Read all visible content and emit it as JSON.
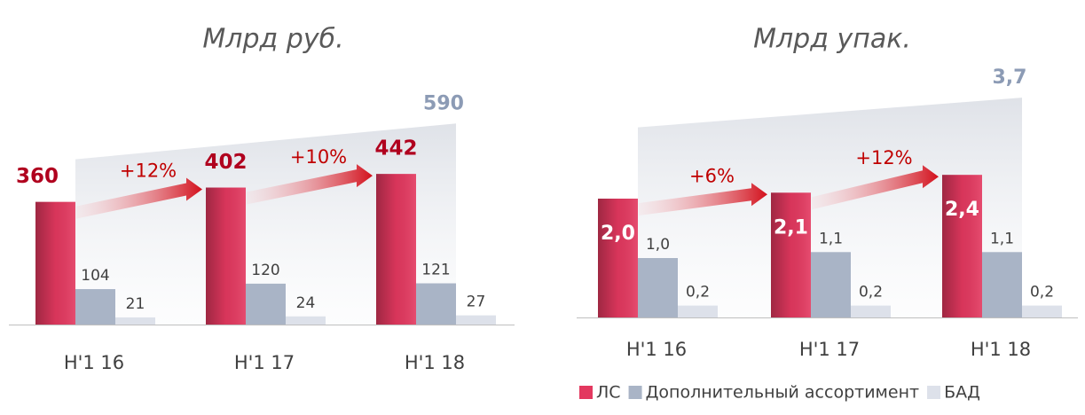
{
  "chart_data": [
    {
      "type": "bar",
      "title": "Млрд руб.",
      "categories": [
        "H'1 16",
        "H'1 17",
        "H'1 18"
      ],
      "series": [
        {
          "color": "#e3385f",
          "values": [
            360,
            402,
            442
          ]
        },
        {
          "color": "#a9b4c6",
          "values": [
            104,
            120,
            121
          ]
        },
        {
          "color": "#dde1ea",
          "values": [
            21,
            24,
            27
          ]
        }
      ],
      "annotations": [
        "+12%",
        "+10%"
      ],
      "total": 590,
      "ylim": [
        0,
        700
      ]
    },
    {
      "type": "bar",
      "title": "Млрд  упак.",
      "categories": [
        "H'1 16",
        "H'1 17",
        "H'1 18"
      ],
      "series": [
        {
          "name": "ЛС",
          "color": "#e3385f",
          "values": [
            2.0,
            2.1,
            2.4
          ],
          "value_labels": [
            "2,0",
            "2,1",
            "2,4"
          ]
        },
        {
          "name": "Дополнительный ассортимент",
          "color": "#a9b4c6",
          "values": [
            1.0,
            1.1,
            1.1
          ],
          "value_labels": [
            "1,0",
            "1,1",
            "1,1"
          ]
        },
        {
          "name": "БАД",
          "color": "#dde1ea",
          "values": [
            0.2,
            0.2,
            0.2
          ],
          "value_labels": [
            "0,2",
            "0,2",
            "0,2"
          ]
        }
      ],
      "annotations": [
        "+6%",
        "+12%"
      ],
      "total": 3.7,
      "total_label": "3,7",
      "ylim": [
        0,
        4
      ]
    }
  ]
}
